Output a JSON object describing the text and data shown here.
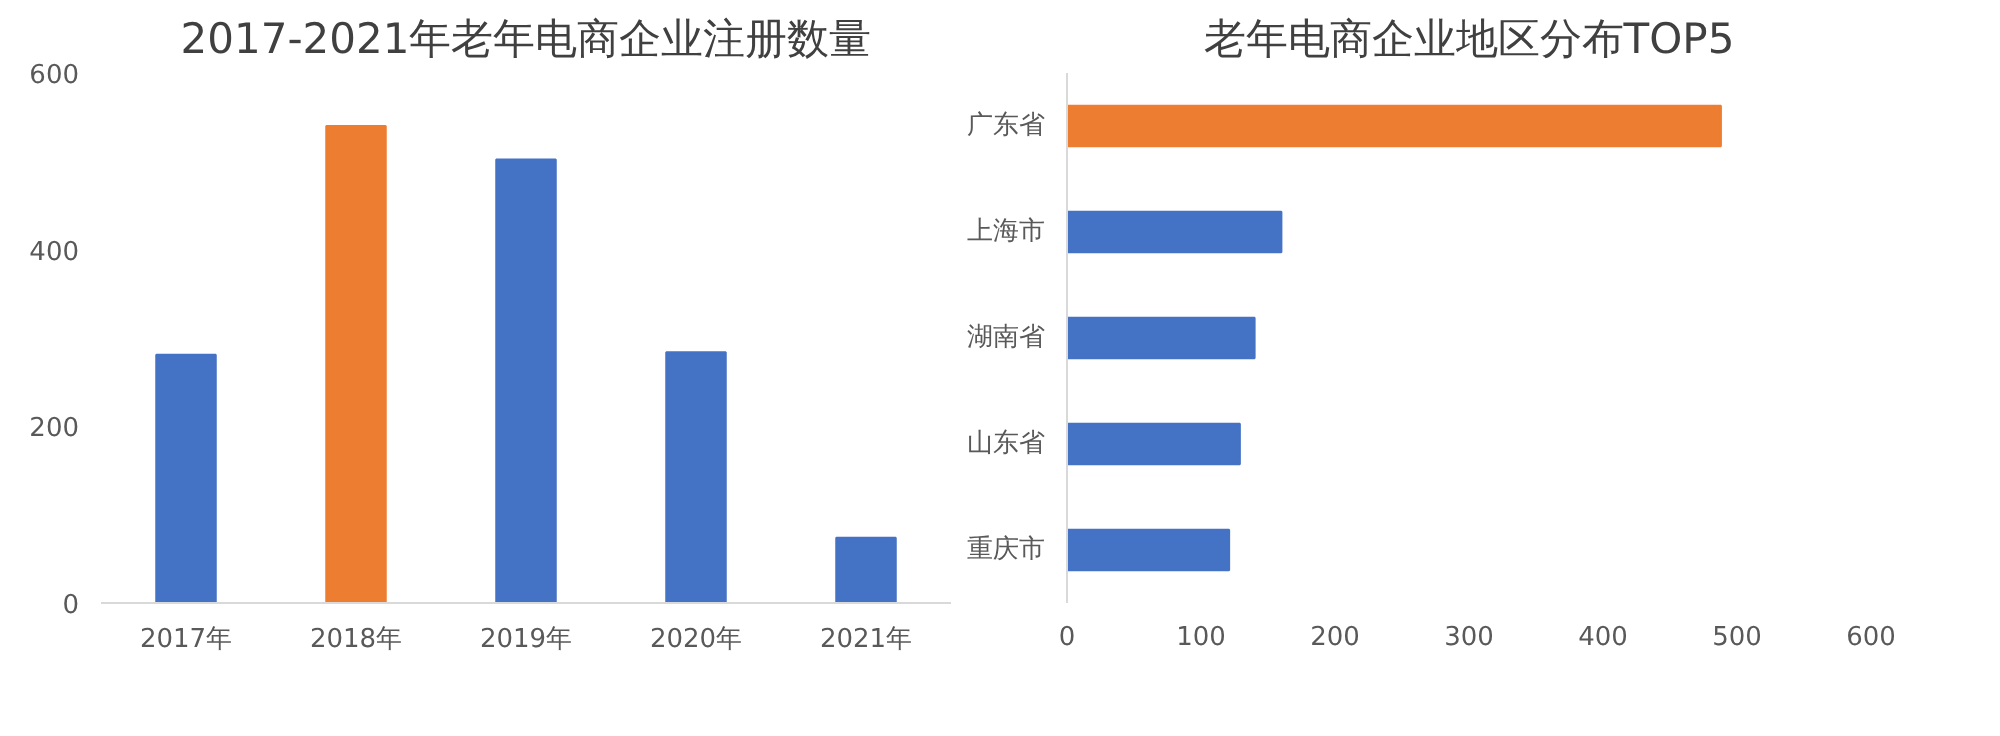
{
  "chart_data": [
    {
      "type": "bar",
      "title": "2017-2021年老年电商企业注册数量",
      "categories": [
        "2017年",
        "2018年",
        "2019年",
        "2020年",
        "2021年"
      ],
      "values": [
        281,
        540,
        502,
        284,
        74
      ],
      "colors": [
        "#4472c4",
        "#ed7d31",
        "#4472c4",
        "#4472c4",
        "#4472c4"
      ],
      "ylim": [
        0,
        600
      ],
      "yticks": [
        0,
        200,
        400,
        600
      ],
      "grid": false
    },
    {
      "type": "bar",
      "orientation": "horizontal",
      "title": "老年电商企业地区分布TOP5",
      "categories": [
        "广东省",
        "上海市",
        "湖南省",
        "山东省",
        "重庆市"
      ],
      "values": [
        488,
        160,
        140,
        129,
        121
      ],
      "colors": [
        "#ed7d31",
        "#4472c4",
        "#4472c4",
        "#4472c4",
        "#4472c4"
      ],
      "xlim": [
        0,
        600
      ],
      "xticks": [
        0,
        100,
        200,
        300,
        400,
        500,
        600
      ],
      "grid": false
    }
  ]
}
